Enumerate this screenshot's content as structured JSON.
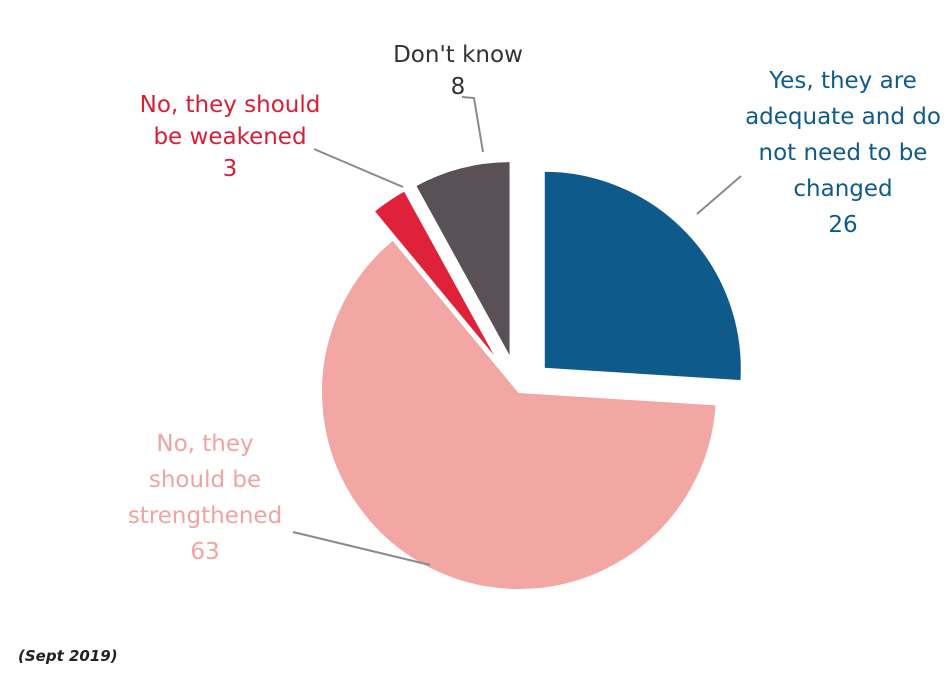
{
  "chart_data": {
    "type": "pie",
    "title": "",
    "categories": [
      "Yes, they are adequate and do not need to be changed",
      "No, they should be strengthened",
      "No, they should be weakened",
      "Don't know"
    ],
    "values": [
      26,
      63,
      3,
      8
    ],
    "slices": [
      {
        "label_lines": [
          "Yes, they are",
          "adequate and do",
          "not need to be",
          "changed"
        ],
        "value": 26,
        "value_text": "26",
        "color": "#0e5b8b",
        "label_color": "#0e5b8b",
        "exploded": true
      },
      {
        "label_lines": [
          "No, they",
          "should be",
          "strengthened"
        ],
        "value": 63,
        "value_text": "63",
        "color": "#f2a7a5",
        "label_color": "#f0a3a1",
        "exploded": false
      },
      {
        "label_lines": [
          "No, they should",
          "be weakened"
        ],
        "value": 3,
        "value_text": "3",
        "color": "#e0213a",
        "label_color": "#d81e35",
        "exploded": true
      },
      {
        "label_lines": [
          "Don't know"
        ],
        "value": 8,
        "value_text": "8",
        "color": "#5a5156",
        "label_color": "#333333",
        "exploded": true
      }
    ],
    "legend": "none"
  },
  "footnote": "(Sept 2019)"
}
